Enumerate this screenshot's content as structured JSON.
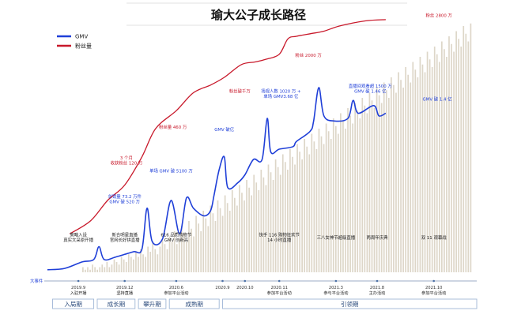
{
  "title": "瑜大公子成长路径",
  "colors": {
    "gmv": "#1f3fd8",
    "fans": "#c8182a",
    "bars": "#ddd6c8",
    "phase_border": "#9fb6d6",
    "phase_text": "#2b4b7c"
  },
  "legend": [
    {
      "key": "gmv",
      "label": "GMV"
    },
    {
      "key": "fans",
      "label": "粉丝量"
    }
  ],
  "chart_data": {
    "type": "line",
    "title": "瑜大公子成长路径",
    "x_range": [
      2019.75,
      2022.25
    ],
    "y_range": [
      0,
      100
    ],
    "grid": false,
    "legend_position": "top-left",
    "series": [
      {
        "name": "粉丝量",
        "key": "fans",
        "points": [
          [
            2019.88,
            15
          ],
          [
            2020.0,
            20
          ],
          [
            2020.1,
            28
          ],
          [
            2020.2,
            34
          ],
          [
            2020.3,
            45
          ],
          [
            2020.38,
            56
          ],
          [
            2020.5,
            63
          ],
          [
            2020.6,
            70
          ],
          [
            2020.7,
            73
          ],
          [
            2020.78,
            76
          ],
          [
            2020.88,
            81
          ],
          [
            2020.96,
            82
          ],
          [
            2021.02,
            83
          ],
          [
            2021.1,
            85
          ],
          [
            2021.15,
            91
          ],
          [
            2021.2,
            92
          ],
          [
            2021.28,
            93
          ],
          [
            2021.36,
            94
          ],
          [
            2021.45,
            96
          ],
          [
            2021.6,
            98
          ],
          [
            2021.72,
            98.5
          ]
        ]
      },
      {
        "name": "GMV",
        "key": "gmv",
        "points": [
          [
            2019.75,
            1
          ],
          [
            2019.85,
            1.5
          ],
          [
            2019.95,
            4
          ],
          [
            2020.02,
            5
          ],
          [
            2020.05,
            10
          ],
          [
            2020.08,
            5
          ],
          [
            2020.15,
            6
          ],
          [
            2020.25,
            8
          ],
          [
            2020.3,
            9
          ],
          [
            2020.33,
            25
          ],
          [
            2020.36,
            12
          ],
          [
            2020.42,
            13
          ],
          [
            2020.47,
            28
          ],
          [
            2020.52,
            15
          ],
          [
            2020.56,
            29
          ],
          [
            2020.6,
            25
          ],
          [
            2020.66,
            22
          ],
          [
            2020.7,
            24
          ],
          [
            2020.72,
            30
          ],
          [
            2020.75,
            40
          ],
          [
            2020.78,
            45
          ],
          [
            2020.8,
            33
          ],
          [
            2020.86,
            35
          ],
          [
            2020.9,
            38
          ],
          [
            2020.95,
            44
          ],
          [
            2021.0,
            44
          ],
          [
            2021.03,
            60
          ],
          [
            2021.05,
            47
          ],
          [
            2021.1,
            48
          ],
          [
            2021.18,
            49
          ],
          [
            2021.2,
            51
          ],
          [
            2021.28,
            55
          ],
          [
            2021.3,
            59
          ],
          [
            2021.33,
            72
          ],
          [
            2021.36,
            61
          ],
          [
            2021.42,
            59
          ],
          [
            2021.5,
            60
          ],
          [
            2021.53,
            67
          ],
          [
            2021.56,
            62
          ],
          [
            2021.65,
            65
          ],
          [
            2021.68,
            61
          ],
          [
            2021.72,
            62
          ]
        ]
      },
      {
        "name": "",
        "key": "bars",
        "style": "bar",
        "values": [
          2,
          1,
          2,
          1,
          3,
          2,
          1,
          2,
          3,
          2,
          4,
          2,
          3,
          5,
          4,
          3,
          6,
          5,
          4,
          7,
          6,
          5,
          8,
          6,
          9,
          7,
          6,
          10,
          8,
          12,
          9,
          7,
          10,
          13,
          11,
          9,
          14,
          12,
          16,
          11,
          13,
          18,
          15,
          12,
          20,
          17,
          14,
          22,
          19,
          16,
          24,
          21,
          18,
          26,
          23,
          20,
          28,
          25,
          22,
          30,
          27,
          24,
          32,
          29,
          26,
          34,
          31,
          28,
          36,
          33,
          30,
          38,
          35,
          32,
          40,
          37,
          34,
          42,
          39,
          36,
          44,
          41,
          38,
          46,
          43,
          40,
          48,
          45,
          42,
          50,
          47,
          44,
          52,
          49,
          46,
          54,
          51,
          48,
          56,
          53,
          50,
          58,
          55,
          52,
          60,
          57,
          54,
          62,
          59,
          56,
          64,
          61,
          58,
          66,
          63,
          60,
          68,
          65,
          62,
          70,
          67,
          64,
          72,
          69,
          66,
          74,
          71,
          68,
          76,
          73,
          70,
          78,
          75,
          72,
          80,
          77,
          74,
          82,
          79,
          76,
          84,
          81,
          78,
          86,
          83,
          80,
          88,
          85,
          82,
          90,
          87,
          84,
          92,
          89,
          86,
          94,
          91,
          88,
          96,
          93,
          90,
          97
        ]
      }
    ]
  },
  "annotations": [
    {
      "text": "粉丝 2800 万",
      "color": "fans",
      "x": 2022.03,
      "y": 99.5
    },
    {
      "text": "粉丝 2000 万",
      "color": "fans",
      "x": 2021.27,
      "y": 84
    },
    {
      "text": "粉丝破千万",
      "color": "fans",
      "x": 2020.87,
      "y": 70
    },
    {
      "text": "粉丝量 460 万",
      "color": "fans",
      "x": 2020.48,
      "y": 56
    },
    {
      "text": "3 个月",
      "color": "fans",
      "x": 2020.21,
      "y": 44
    },
    {
      "text": "收获粉丝 120 万",
      "color": "fans",
      "x": 2020.21,
      "y": 42
    },
    {
      "text": "场观人数 1020 万 +",
      "color": "gmv",
      "x": 2021.11,
      "y": 70
    },
    {
      "text": "单场 GMV3.68 亿",
      "color": "gmv",
      "x": 2021.11,
      "y": 68
    },
    {
      "text": "直播间观看超 1500 万",
      "color": "gmv",
      "x": 2021.63,
      "y": 72
    },
    {
      "text": "GMV 破 1.46 亿",
      "color": "gmv",
      "x": 2021.63,
      "y": 70
    },
    {
      "text": "GMV 破 1.4 亿",
      "color": "gmv",
      "x": 2022.02,
      "y": 67
    },
    {
      "text": "GMV 破亿",
      "color": "gmv",
      "x": 2020.78,
      "y": 55
    },
    {
      "text": "单场 GMV 破 5100 万",
      "color": "gmv",
      "x": 2020.47,
      "y": 39
    },
    {
      "text": "总销量 73.2 万件",
      "color": "gmv",
      "x": 2020.2,
      "y": 29
    },
    {
      "text": "GMV 破 520 万",
      "color": "gmv",
      "x": 2020.2,
      "y": 27
    },
    {
      "text": "策略入设",
      "color": "black",
      "x": 2019.93,
      "y": 14
    },
    {
      "text": "真实文采原开播",
      "color": "black",
      "x": 2019.93,
      "y": 12
    },
    {
      "text": "新合明星直播",
      "color": "black",
      "x": 2020.2,
      "y": 14
    },
    {
      "text": "官网长好拼直播",
      "color": "black",
      "x": 2020.2,
      "y": 12
    },
    {
      "text": "616 品质购物节",
      "color": "black",
      "x": 2020.5,
      "y": 14
    },
    {
      "text": "GMV 创新高",
      "color": "black",
      "x": 2020.5,
      "y": 12
    },
    {
      "text": "快手 116 购物狂欢节",
      "color": "black",
      "x": 2021.1,
      "y": 14
    },
    {
      "text": "14 小时直播",
      "color": "black",
      "x": 2021.1,
      "y": 12
    },
    {
      "text": "三八女神节超级直播",
      "color": "black",
      "x": 2021.43,
      "y": 13
    },
    {
      "text": "两周年庆典",
      "color": "black",
      "x": 2021.67,
      "y": 13
    },
    {
      "text": "双 11 观幕战",
      "color": "black",
      "x": 2022.0,
      "y": 13
    }
  ],
  "start_label": "大事件",
  "dates": [
    {
      "x": 2019.93,
      "date": "2019.9",
      "event": "入驻开播"
    },
    {
      "x": 2020.2,
      "date": "2019.12",
      "event": "坚持直播"
    },
    {
      "x": 2020.5,
      "date": "2020.6",
      "event": "参加平台活动"
    },
    {
      "x": 2020.77,
      "date": "2020.9",
      "event": ""
    },
    {
      "x": 2020.9,
      "date": "2020.10",
      "event": ""
    },
    {
      "x": 2021.1,
      "date": "2020.11",
      "event": "参加平台活动"
    },
    {
      "x": 2021.43,
      "date": "2021.3",
      "event": "参与平台活动"
    },
    {
      "x": 2021.67,
      "date": "2021.8",
      "event": "主办活动"
    },
    {
      "x": 2022.0,
      "date": "2021.10",
      "event": "参加平台活动"
    }
  ],
  "phases": [
    {
      "label": "入局期",
      "x0": 2019.78,
      "x1": 2020.02
    },
    {
      "label": "成长期",
      "x0": 2020.04,
      "x1": 2020.26
    },
    {
      "label": "攀升期",
      "x0": 2020.28,
      "x1": 2020.44
    },
    {
      "label": "成熟期",
      "x0": 2020.46,
      "x1": 2020.75
    },
    {
      "label": "引领期",
      "x0": 2020.77,
      "x1": 2022.25
    }
  ]
}
